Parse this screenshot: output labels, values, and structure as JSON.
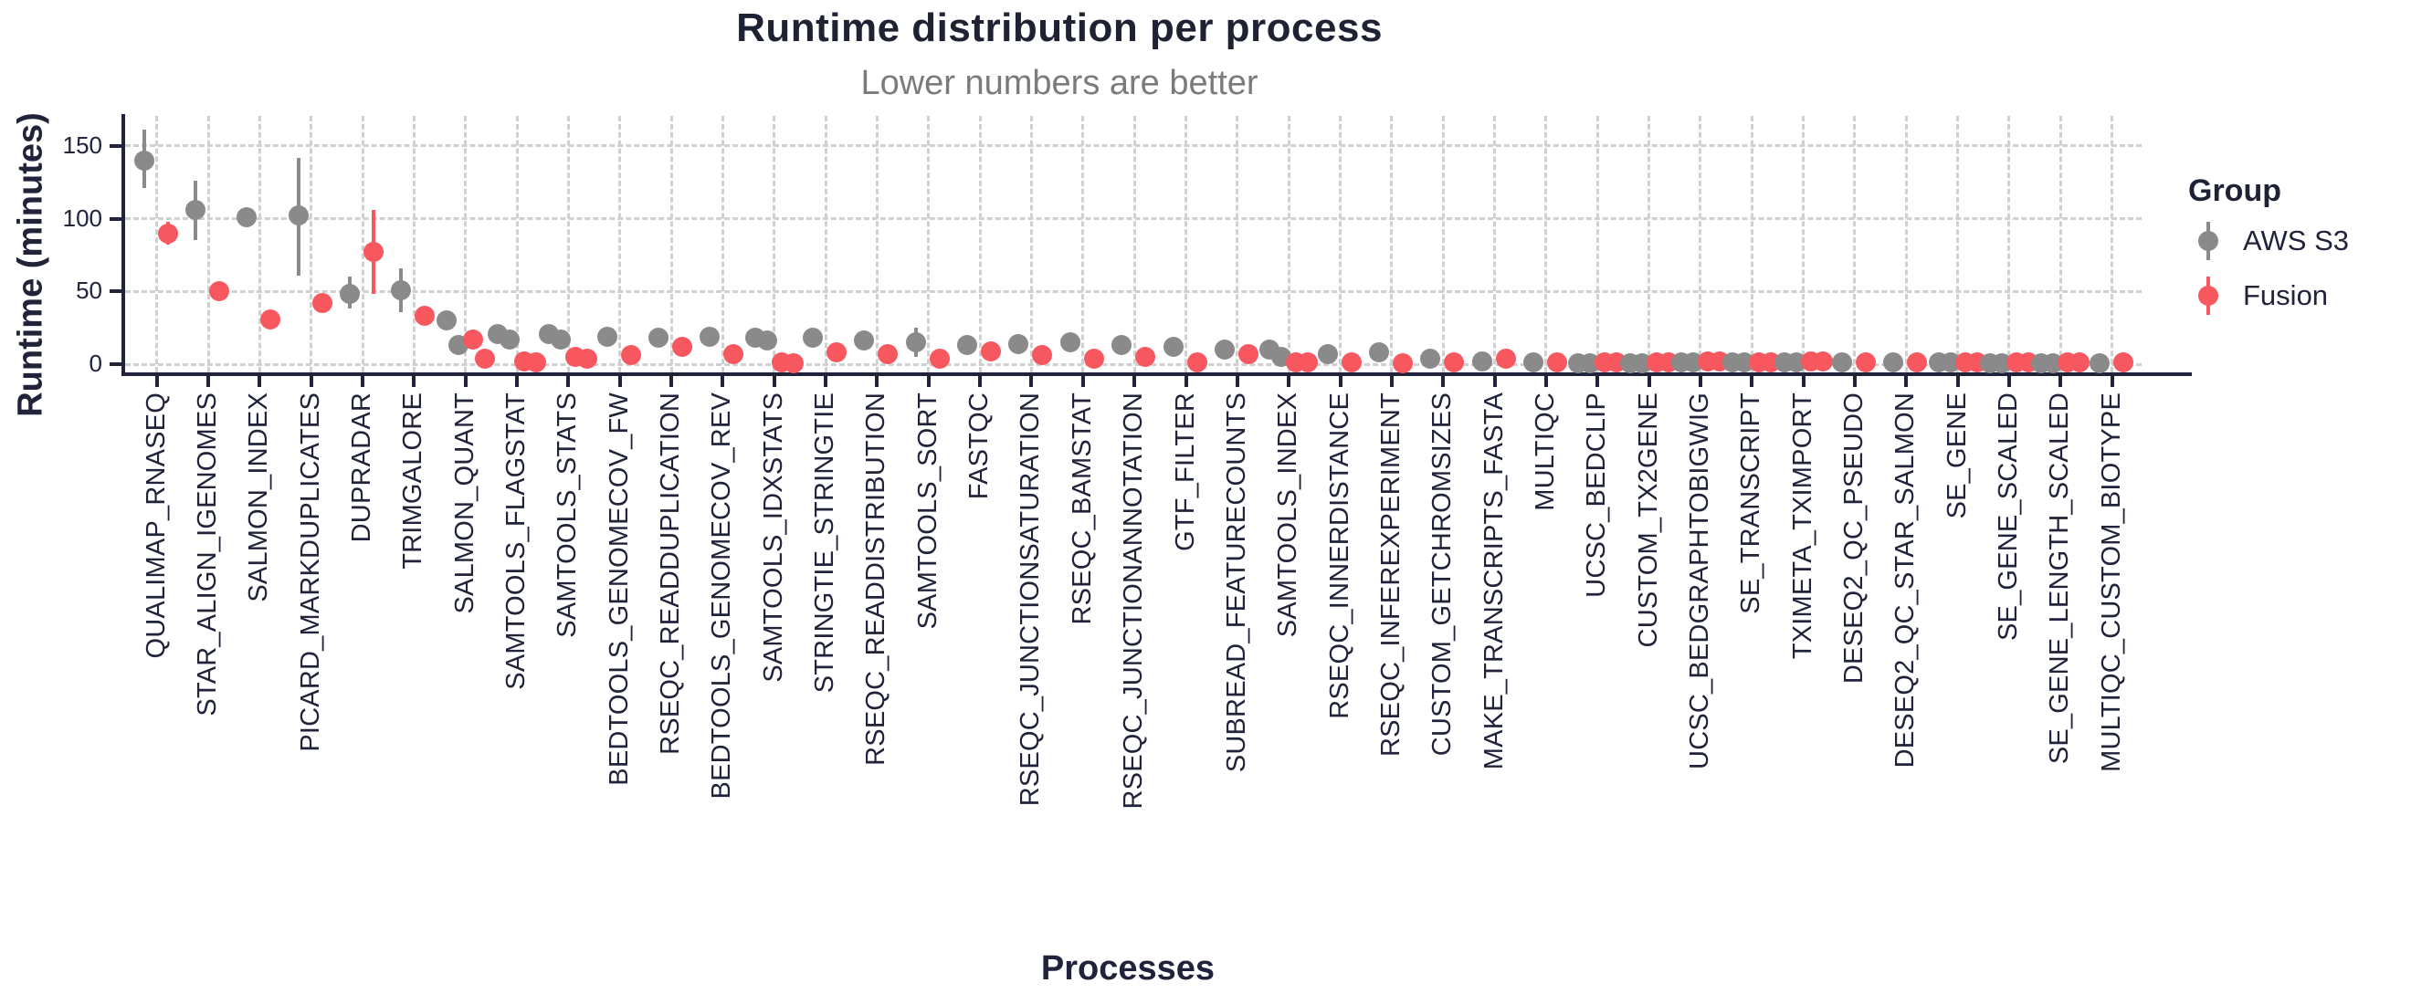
{
  "chart_data": {
    "type": "scatter",
    "title": "Runtime distribution per process",
    "subtitle": "Lower numbers are better",
    "xlabel": "Processes",
    "ylabel": "Runtime (minutes)",
    "legend_title": "Group",
    "ylim": [
      0,
      170
    ],
    "y_ticks": [
      0,
      50,
      100,
      150
    ],
    "y_tick_labels": [
      "0",
      "50",
      "100",
      "150"
    ],
    "grid": "dashed",
    "legend_position": "right",
    "series": [
      {
        "name": "AWS S3",
        "color": "#8a8a8a"
      },
      {
        "name": "Fusion",
        "color": "#f7585f"
      }
    ],
    "categories": [
      "QUALIMAP_RNASEQ",
      "STAR_ALIGN_IGENOMES",
      "SALMON_INDEX",
      "PICARD_MARKDUPLICATES",
      "DUPRADAR",
      "TRIMGALORE",
      "SALMON_QUANT",
      "SAMTOOLS_FLAGSTAT",
      "SAMTOOLS_STATS",
      "BEDTOOLS_GENOMECOV_FW",
      "RSEQC_READDUPLICATION",
      "BEDTOOLS_GENOMECOV_REV",
      "SAMTOOLS_IDXSTATS",
      "STRINGTIE_STRINGTIE",
      "RSEQC_READDISTRIBUTION",
      "SAMTOOLS_SORT",
      "FASTQC",
      "RSEQC_JUNCTIONSATURATION",
      "RSEQC_BAMSTAT",
      "RSEQC_JUNCTIONANNOTATION",
      "GTF_FILTER",
      "SUBREAD_FEATURECOUNTS",
      "SAMTOOLS_INDEX",
      "RSEQC_INNERDISTANCE",
      "RSEQC_INFEREXPERIMENT",
      "CUSTOM_GETCHROMSIZES",
      "MAKE_TRANSCRIPTS_FASTA",
      "MULTIQC",
      "UCSC_BEDCLIP",
      "CUSTOM_TX2GENE",
      "UCSC_BEDGRAPHTOBIGWIG",
      "SE_TRANSCRIPT",
      "TXIMETA_TXIMPORT",
      "DESEQ2_QC_PSEUDO",
      "DESEQ2_QC_STAR_SALMON",
      "SE_GENE",
      "SE_GENE_SCALED",
      "SE_GENE_LENGTH_SCALED",
      "MULTIQC_CUSTOM_BIOTYPE"
    ],
    "points": [
      {
        "process": "QUALIMAP_RNASEQ",
        "aws_s3": {
          "dots": [
            140
          ],
          "range": [
            121,
            161
          ]
        },
        "fusion": {
          "dots": [
            90
          ],
          "range": [
            82,
            98
          ]
        }
      },
      {
        "process": "STAR_ALIGN_IGENOMES",
        "aws_s3": {
          "dots": [
            106
          ],
          "range": [
            85,
            126
          ]
        },
        "fusion": {
          "dots": [
            50
          ]
        }
      },
      {
        "process": "SALMON_INDEX",
        "aws_s3": {
          "dots": [
            101
          ]
        },
        "fusion": {
          "dots": [
            31
          ]
        }
      },
      {
        "process": "PICARD_MARKDUPLICATES",
        "aws_s3": {
          "dots": [
            102
          ],
          "range": [
            61,
            142
          ]
        },
        "fusion": {
          "dots": [
            42
          ]
        }
      },
      {
        "process": "DUPRADAR",
        "aws_s3": {
          "dots": [
            48
          ],
          "range": [
            38,
            60
          ]
        },
        "fusion": {
          "dots": [
            77
          ],
          "range": [
            48,
            106
          ]
        }
      },
      {
        "process": "TRIMGALORE",
        "aws_s3": {
          "dots": [
            51
          ],
          "range": [
            36,
            66
          ]
        },
        "fusion": {
          "dots": [
            33
          ]
        }
      },
      {
        "process": "SALMON_QUANT",
        "aws_s3": {
          "dots": [
            30,
            13
          ]
        },
        "fusion": {
          "dots": [
            17,
            4
          ]
        }
      },
      {
        "process": "SAMTOOLS_FLAGSTAT",
        "aws_s3": {
          "dots": [
            21,
            17
          ]
        },
        "fusion": {
          "dots": [
            2,
            1
          ]
        }
      },
      {
        "process": "SAMTOOLS_STATS",
        "aws_s3": {
          "dots": [
            21,
            17
          ]
        },
        "fusion": {
          "dots": [
            5,
            4
          ]
        }
      },
      {
        "process": "BEDTOOLS_GENOMECOV_FW",
        "aws_s3": {
          "dots": [
            19
          ]
        },
        "fusion": {
          "dots": [
            6
          ]
        }
      },
      {
        "process": "RSEQC_READDUPLICATION",
        "aws_s3": {
          "dots": [
            18
          ]
        },
        "fusion": {
          "dots": [
            12
          ]
        }
      },
      {
        "process": "BEDTOOLS_GENOMECOV_REV",
        "aws_s3": {
          "dots": [
            19
          ]
        },
        "fusion": {
          "dots": [
            7
          ]
        }
      },
      {
        "process": "SAMTOOLS_IDXSTATS",
        "aws_s3": {
          "dots": [
            18,
            16
          ]
        },
        "fusion": {
          "dots": [
            1.5,
            0.5
          ]
        }
      },
      {
        "process": "STRINGTIE_STRINGTIE",
        "aws_s3": {
          "dots": [
            18
          ]
        },
        "fusion": {
          "dots": [
            8
          ]
        }
      },
      {
        "process": "RSEQC_READDISTRIBUTION",
        "aws_s3": {
          "dots": [
            16
          ]
        },
        "fusion": {
          "dots": [
            7
          ]
        }
      },
      {
        "process": "SAMTOOLS_SORT",
        "aws_s3": {
          "dots": [
            15
          ],
          "range": [
            5,
            25
          ]
        },
        "fusion": {
          "dots": [
            4
          ]
        }
      },
      {
        "process": "FASTQC",
        "aws_s3": {
          "dots": [
            13
          ]
        },
        "fusion": {
          "dots": [
            9
          ]
        }
      },
      {
        "process": "RSEQC_JUNCTIONSATURATION",
        "aws_s3": {
          "dots": [
            14
          ]
        },
        "fusion": {
          "dots": [
            6
          ]
        }
      },
      {
        "process": "RSEQC_BAMSTAT",
        "aws_s3": {
          "dots": [
            15
          ]
        },
        "fusion": {
          "dots": [
            4
          ]
        }
      },
      {
        "process": "RSEQC_JUNCTIONANNOTATION",
        "aws_s3": {
          "dots": [
            13
          ]
        },
        "fusion": {
          "dots": [
            5
          ]
        }
      },
      {
        "process": "GTF_FILTER",
        "aws_s3": {
          "dots": [
            12
          ]
        },
        "fusion": {
          "dots": [
            1
          ]
        }
      },
      {
        "process": "SUBREAD_FEATURECOUNTS",
        "aws_s3": {
          "dots": [
            10
          ]
        },
        "fusion": {
          "dots": [
            7
          ]
        }
      },
      {
        "process": "SAMTOOLS_INDEX",
        "aws_s3": {
          "dots": [
            10,
            5
          ]
        },
        "fusion": {
          "dots": [
            1.5,
            1.5
          ]
        }
      },
      {
        "process": "RSEQC_INNERDISTANCE",
        "aws_s3": {
          "dots": [
            7
          ]
        },
        "fusion": {
          "dots": [
            1
          ]
        }
      },
      {
        "process": "RSEQC_INFEREXPERIMENT",
        "aws_s3": {
          "dots": [
            8
          ]
        },
        "fusion": {
          "dots": [
            0.5
          ]
        }
      },
      {
        "process": "CUSTOM_GETCHROMSIZES",
        "aws_s3": {
          "dots": [
            4
          ]
        },
        "fusion": {
          "dots": [
            1
          ]
        }
      },
      {
        "process": "MAKE_TRANSCRIPTS_FASTA",
        "aws_s3": {
          "dots": [
            2
          ]
        },
        "fusion": {
          "dots": [
            4
          ]
        }
      },
      {
        "process": "MULTIQC",
        "aws_s3": {
          "dots": [
            1.5
          ]
        },
        "fusion": {
          "dots": [
            1.5
          ]
        }
      },
      {
        "process": "UCSC_BEDCLIP",
        "aws_s3": {
          "dots": [
            0.5,
            0.5
          ]
        },
        "fusion": {
          "dots": [
            1.5,
            1.5
          ]
        }
      },
      {
        "process": "CUSTOM_TX2GENE",
        "aws_s3": {
          "dots": [
            0.5,
            0.5
          ]
        },
        "fusion": {
          "dots": [
            1.5,
            1.5
          ]
        }
      },
      {
        "process": "UCSC_BEDGRAPHTOBIGWIG",
        "aws_s3": {
          "dots": [
            1.5,
            1.5
          ]
        },
        "fusion": {
          "dots": [
            2,
            2
          ]
        }
      },
      {
        "process": "SE_TRANSCRIPT",
        "aws_s3": {
          "dots": [
            1.5,
            1.5
          ]
        },
        "fusion": {
          "dots": [
            1.5,
            1.5
          ]
        }
      },
      {
        "process": "TXIMETA_TXIMPORT",
        "aws_s3": {
          "dots": [
            1,
            1
          ]
        },
        "fusion": {
          "dots": [
            2,
            2
          ]
        }
      },
      {
        "process": "DESEQ2_QC_PSEUDO",
        "aws_s3": {
          "dots": [
            1
          ]
        },
        "fusion": {
          "dots": [
            1
          ]
        }
      },
      {
        "process": "DESEQ2_QC_STAR_SALMON",
        "aws_s3": {
          "dots": [
            1
          ]
        },
        "fusion": {
          "dots": [
            1
          ]
        }
      },
      {
        "process": "SE_GENE",
        "aws_s3": {
          "dots": [
            1,
            1
          ]
        },
        "fusion": {
          "dots": [
            1.5,
            1.5
          ]
        }
      },
      {
        "process": "SE_GENE_SCALED",
        "aws_s3": {
          "dots": [
            0.5,
            0.5
          ]
        },
        "fusion": {
          "dots": [
            1,
            1
          ]
        }
      },
      {
        "process": "SE_GENE_LENGTH_SCALED",
        "aws_s3": {
          "dots": [
            0.5,
            0.5
          ]
        },
        "fusion": {
          "dots": [
            1.5,
            1.5
          ]
        }
      },
      {
        "process": "MULTIQC_CUSTOM_BIOTYPE",
        "aws_s3": {
          "dots": [
            0.5
          ]
        },
        "fusion": {
          "dots": [
            1
          ]
        }
      }
    ]
  }
}
